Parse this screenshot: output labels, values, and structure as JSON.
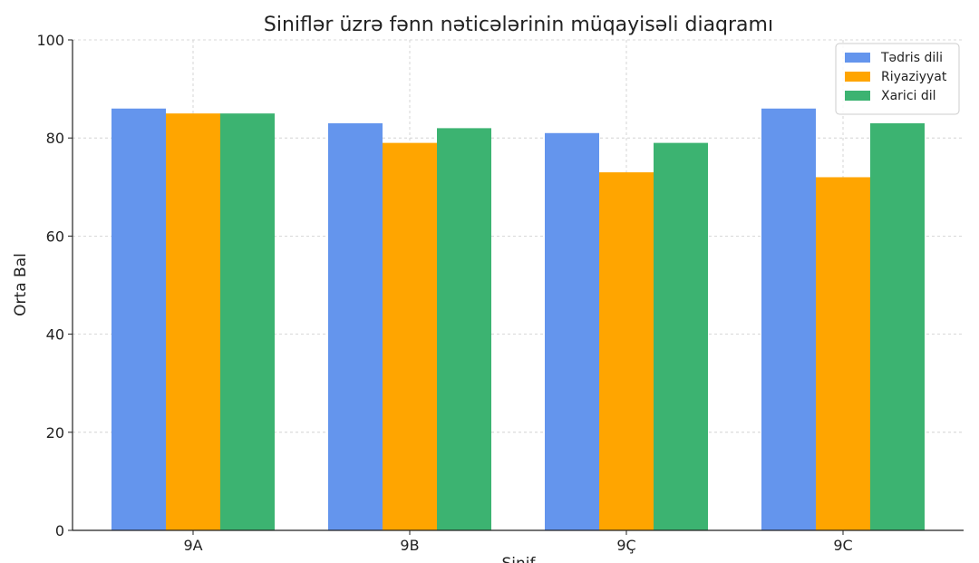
{
  "chart_data": {
    "type": "bar",
    "title": "Siniflər üzrə fənn nəticələrinin müqayisəli diaqramı",
    "xlabel": "Sinif",
    "ylabel": "Orta Bal",
    "ylim": [
      0,
      100
    ],
    "yticks": [
      0,
      20,
      40,
      60,
      80,
      100
    ],
    "categories": [
      "9A",
      "9B",
      "9Ç",
      "9C"
    ],
    "grid": true,
    "legend_position": "top-right",
    "series": [
      {
        "name": "Tədris dili",
        "color": "#6495ED",
        "values": [
          86,
          83,
          81,
          86
        ]
      },
      {
        "name": "Riyaziyyat",
        "color": "#FFA500",
        "values": [
          85,
          79,
          73,
          72
        ]
      },
      {
        "name": "Xarici dil",
        "color": "#3CB371",
        "values": [
          85,
          82,
          79,
          83
        ]
      }
    ]
  }
}
